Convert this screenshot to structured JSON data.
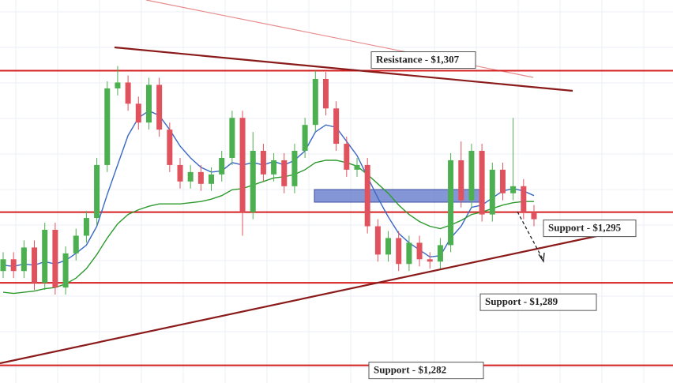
{
  "chart_data": {
    "type": "candlestick",
    "open": [
      1290.0,
      1291.0,
      1290.0,
      1292.0,
      1289.0,
      1293.5,
      1288.6,
      1291.5,
      1293.0,
      1294.5,
      1299.0,
      1305.5,
      1306.0,
      1304.2,
      1302.6,
      1305.8,
      1302.0,
      1299.0,
      1297.6,
      1298.4,
      1297.4,
      1298.2,
      1299.6,
      1303.0,
      1295.0,
      1300.2,
      1298.2,
      1299.4,
      1297.2,
      1300.2,
      1302.4,
      1306.3,
      1303.8,
      1300.8,
      1298.6,
      1299.0,
      1293.8,
      1291.4,
      1292.8,
      1290.6,
      1292.4,
      1291.0,
      1290.8,
      1292.2,
      1299.4,
      1296.0,
      1300.2,
      1294.8,
      1298.6,
      1296.6,
      1297.2,
      1295.0
    ],
    "high": [
      1291.6,
      1291.6,
      1292.6,
      1292.6,
      1294.1,
      1294.1,
      1292.1,
      1293.6,
      1295.1,
      1299.6,
      1306.1,
      1307.4,
      1306.6,
      1304.8,
      1306.4,
      1306.4,
      1302.6,
      1299.6,
      1299.0,
      1299.0,
      1298.8,
      1300.2,
      1303.6,
      1303.6,
      1301.8,
      1300.8,
      1300.0,
      1300.0,
      1300.8,
      1303.0,
      1307.0,
      1306.9,
      1304.4,
      1301.4,
      1299.6,
      1299.6,
      1294.4,
      1293.4,
      1293.4,
      1293.0,
      1293.0,
      1291.6,
      1292.8,
      1300.0,
      1301.0,
      1300.8,
      1300.8,
      1299.2,
      1299.2,
      1303.0,
      1297.8,
      1295.6
    ],
    "low": [
      1289.4,
      1289.4,
      1289.4,
      1288.4,
      1288.4,
      1288.0,
      1288.0,
      1290.9,
      1292.4,
      1293.9,
      1298.4,
      1304.9,
      1303.6,
      1302.0,
      1302.0,
      1301.4,
      1298.4,
      1297.0,
      1297.0,
      1296.8,
      1296.8,
      1297.6,
      1299.0,
      1293.0,
      1294.4,
      1297.6,
      1297.6,
      1296.6,
      1296.6,
      1299.6,
      1301.8,
      1303.2,
      1300.2,
      1298.0,
      1298.0,
      1293.2,
      1290.8,
      1290.8,
      1290.0,
      1290.0,
      1290.4,
      1290.2,
      1290.2,
      1291.6,
      1295.4,
      1295.4,
      1294.2,
      1294.2,
      1296.0,
      1296.0,
      1294.4,
      1293.8
    ],
    "close": [
      1291.0,
      1290.0,
      1292.0,
      1289.0,
      1293.5,
      1288.6,
      1291.5,
      1293.0,
      1294.5,
      1299.0,
      1305.5,
      1306.0,
      1304.2,
      1302.6,
      1305.8,
      1302.0,
      1299.0,
      1297.6,
      1298.4,
      1297.4,
      1298.2,
      1299.6,
      1303.0,
      1295.0,
      1300.2,
      1298.2,
      1299.4,
      1297.2,
      1300.2,
      1302.4,
      1306.3,
      1303.8,
      1300.8,
      1298.6,
      1299.0,
      1293.8,
      1291.4,
      1292.8,
      1290.6,
      1292.4,
      1291.0,
      1290.8,
      1292.2,
      1299.4,
      1296.0,
      1300.2,
      1294.8,
      1298.6,
      1296.6,
      1297.2,
      1295.0,
      1294.4
    ],
    "up_color": "#4caf50",
    "down_color": "#e0525e",
    "ylim": [
      1280.5,
      1313
    ],
    "series": [
      {
        "color": "#3a68c4",
        "values": [
          1290.5,
          1290.4,
          1290.6,
          1290.5,
          1290.8,
          1290.6,
          1290.9,
          1291.5,
          1292.2,
          1293.8,
          1296.5,
          1299.0,
          1301.5,
          1303.0,
          1303.6,
          1303.2,
          1302.0,
          1300.6,
          1299.6,
          1298.8,
          1298.4,
          1298.5,
          1299.2,
          1299.0,
          1299.2,
          1299.0,
          1299.3,
          1299.0,
          1299.4,
          1300.2,
          1301.8,
          1302.4,
          1302.2,
          1301.0,
          1299.8,
          1298.0,
          1296.2,
          1294.6,
          1293.2,
          1292.4,
          1291.8,
          1291.2,
          1291.3,
          1292.8,
          1293.8,
          1295.4,
          1295.6,
          1296.2,
          1296.8,
          1297.0,
          1296.8,
          1296.4
        ]
      },
      {
        "color": "#2e9a2e",
        "values": [
          1288.2,
          1288.1,
          1288.2,
          1288.3,
          1288.5,
          1288.6,
          1288.9,
          1289.4,
          1290.2,
          1291.4,
          1292.8,
          1294.0,
          1294.8,
          1295.2,
          1295.5,
          1295.7,
          1295.7,
          1295.7,
          1295.8,
          1295.9,
          1296.1,
          1296.4,
          1296.9,
          1297.0,
          1297.3,
          1297.6,
          1297.9,
          1298.0,
          1298.2,
          1298.6,
          1299.2,
          1299.4,
          1299.4,
          1299.2,
          1298.9,
          1298.2,
          1297.4,
          1296.6,
          1295.6,
          1294.8,
          1294.2,
          1293.8,
          1293.6,
          1293.9,
          1294.3,
          1294.8,
          1295.0,
          1295.3,
          1295.6,
          1295.8,
          1295.9,
          1295.9
        ]
      }
    ],
    "levels": [
      {
        "label": "Resistance - $1,307",
        "value": 1307,
        "color": "#d42020"
      },
      {
        "label": "Support - $1,295",
        "value": 1295,
        "color": "#d42020"
      },
      {
        "label": "Support - $1,289",
        "value": 1289,
        "color": "#d42020"
      },
      {
        "label": "Support - $1,282",
        "value": 1282,
        "color": "#d42020"
      }
    ]
  }
}
